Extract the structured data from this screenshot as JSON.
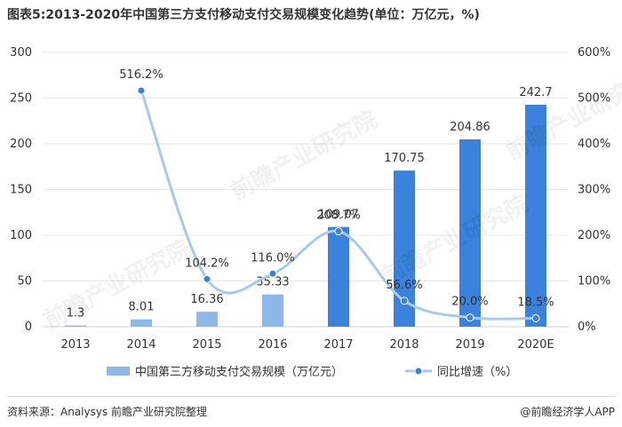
{
  "title": "图表5:2013-2020年中国第三方支付移动支付交易规模变化趋势(单位：万亿元，%)",
  "source": "资料来源：Analysys 前瞻产业研究院整理",
  "credit": "@前瞻经济学人APP",
  "watermark": "前瞻产业研究院",
  "colors": {
    "bar_light": "#8db8ea",
    "bar_dark": "#3a82dc",
    "line": "#a9c8ee",
    "marker": "#3a82dc"
  },
  "chart_data": {
    "type": "bar",
    "categories": [
      "2013",
      "2014",
      "2015",
      "2016",
      "2017",
      "2018",
      "2019",
      "2020E"
    ],
    "series": [
      {
        "name": "中国第三方移动支付交易规模（万亿元）",
        "type": "bar",
        "axis": "left",
        "values": [
          1.3,
          8.01,
          16.36,
          35.33,
          109.07,
          170.75,
          204.86,
          242.7
        ],
        "labels": [
          "1.3",
          "8.01",
          "16.36",
          "35.33",
          "109.07",
          "170.75",
          "204.86",
          "242.7"
        ]
      },
      {
        "name": "同比增速（%）",
        "type": "line",
        "axis": "right",
        "values": [
          null,
          516.2,
          104.2,
          116.0,
          208.7,
          56.6,
          20.0,
          18.5
        ],
        "labels": [
          "",
          "516.2%",
          "104.2%",
          "116.0%",
          "208.7%",
          "56.6%",
          "20.0%",
          "18.5%"
        ]
      }
    ],
    "y_left": {
      "range": [
        0,
        300
      ],
      "ticks": [
        "0",
        "50",
        "100",
        "150",
        "200",
        "250",
        "300"
      ]
    },
    "y_right": {
      "range": [
        0,
        600
      ],
      "ticks": [
        "0%",
        "100%",
        "200%",
        "300%",
        "400%",
        "500%",
        "600%"
      ]
    },
    "legend": "bottom"
  }
}
